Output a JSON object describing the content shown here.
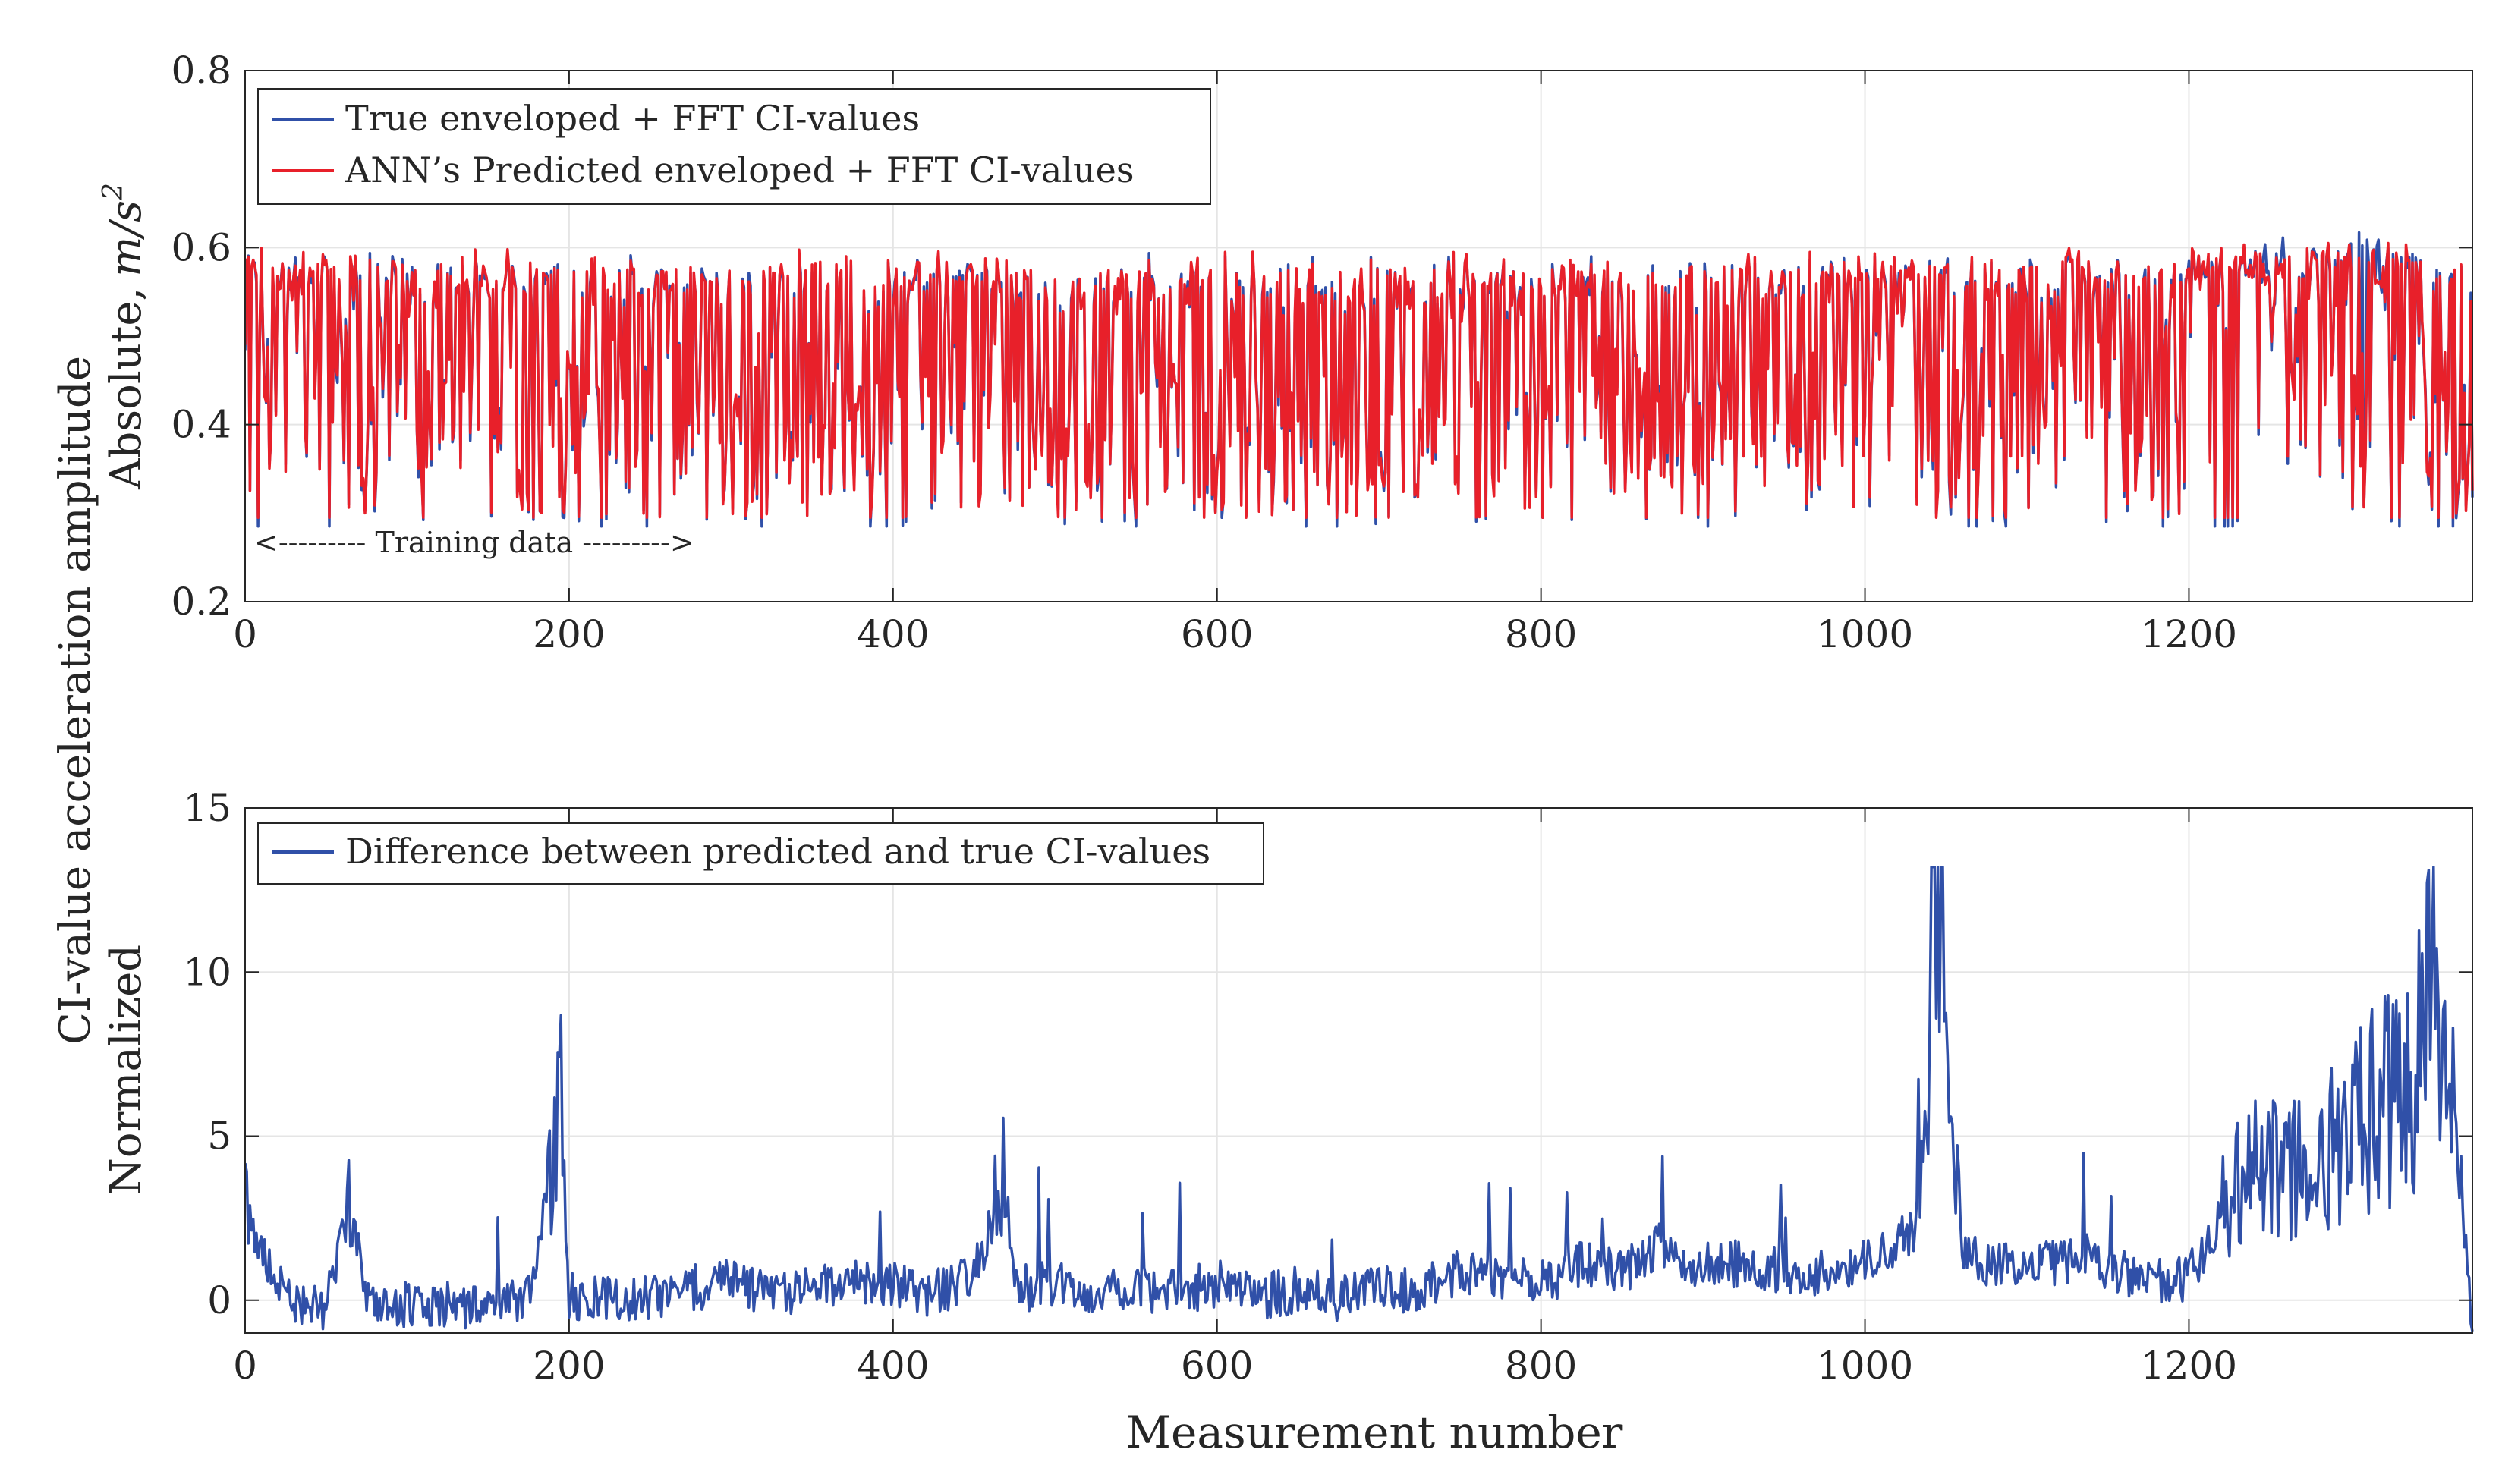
{
  "ylabel_outer": "CI-value acceleration amplitude",
  "chart_data": [
    {
      "type": "line",
      "name": "top",
      "ylabel": "Absolute, m/s²",
      "ylabel_text": "Absolute,",
      "ylabel_unit_main": "m/s",
      "ylabel_unit_exp": "2",
      "xlabel": "",
      "xlim": [
        0,
        1375
      ],
      "ylim": [
        0.2,
        0.8
      ],
      "xticks": [
        0,
        200,
        400,
        600,
        800,
        1000,
        1200
      ],
      "yticks": [
        0.2,
        0.4,
        0.6,
        0.8
      ],
      "xtick_labels": [
        "0",
        "200",
        "400",
        "600",
        "800",
        "1000",
        "1200"
      ],
      "ytick_labels": [
        "0.2",
        "0.4",
        "0.6",
        "0.8"
      ],
      "grid": true,
      "legend_position": "top-left",
      "annotation": "<--------- Training data --------->",
      "series": [
        {
          "name": "True enveloped + FFT CI-values",
          "color": "#3050a8",
          "x": [
            0,
            25,
            50,
            75,
            100,
            125,
            150,
            175,
            200,
            225,
            250,
            275,
            300,
            325,
            350,
            375,
            400,
            425,
            450,
            475,
            500,
            525,
            550,
            575,
            600,
            625,
            650,
            675,
            700,
            725,
            750,
            775,
            800,
            825,
            850,
            875,
            900,
            925,
            950,
            975,
            1000,
            1025,
            1050,
            1075,
            1100,
            1125,
            1150,
            1175,
            1200,
            1225,
            1250,
            1275,
            1300,
            1325,
            1350,
            1375
          ],
          "values": [
            0.57,
            0.52,
            0.49,
            0.58,
            0.47,
            0.5,
            0.46,
            0.52,
            0.55,
            0.49,
            0.48,
            0.52,
            0.47,
            0.53,
            0.5,
            0.45,
            0.48,
            0.5,
            0.53,
            0.5,
            0.45,
            0.42,
            0.47,
            0.49,
            0.44,
            0.46,
            0.43,
            0.46,
            0.45,
            0.44,
            0.47,
            0.48,
            0.44,
            0.5,
            0.49,
            0.46,
            0.45,
            0.47,
            0.49,
            0.5,
            0.52,
            0.55,
            0.51,
            0.5,
            0.47,
            0.55,
            0.53,
            0.5,
            0.56,
            0.6,
            0.61,
            0.6,
            0.64,
            0.62,
            0.6,
            0.42
          ]
        },
        {
          "name": "ANN’s Predicted enveloped + FFT CI-values",
          "color": "#e8202a",
          "x": [
            0,
            25,
            50,
            75,
            100,
            125,
            150,
            175,
            200,
            225,
            250,
            275,
            300,
            325,
            350,
            375,
            400,
            425,
            450,
            475,
            500,
            525,
            550,
            575,
            600,
            625,
            650,
            675,
            700,
            725,
            750,
            775,
            800,
            825,
            850,
            875,
            900,
            925,
            950,
            975,
            1000,
            1025,
            1050,
            1075,
            1100,
            1125,
            1150,
            1175,
            1200,
            1225,
            1250,
            1275,
            1300,
            1325,
            1350,
            1375
          ],
          "values": [
            0.57,
            0.51,
            0.49,
            0.57,
            0.47,
            0.5,
            0.46,
            0.52,
            0.55,
            0.49,
            0.48,
            0.52,
            0.47,
            0.53,
            0.5,
            0.45,
            0.48,
            0.5,
            0.53,
            0.5,
            0.45,
            0.42,
            0.47,
            0.49,
            0.44,
            0.46,
            0.43,
            0.46,
            0.45,
            0.44,
            0.47,
            0.48,
            0.44,
            0.5,
            0.49,
            0.46,
            0.45,
            0.47,
            0.49,
            0.5,
            0.5,
            0.52,
            0.49,
            0.49,
            0.47,
            0.52,
            0.51,
            0.49,
            0.52,
            0.53,
            0.52,
            0.5,
            0.52,
            0.5,
            0.5,
            0.38
          ]
        }
      ]
    },
    {
      "type": "line",
      "name": "bottom",
      "ylabel": "Normalized",
      "xlabel": "Measurement number",
      "xlim": [
        0,
        1375
      ],
      "ylim": [
        -1,
        15
      ],
      "xticks": [
        0,
        200,
        400,
        600,
        800,
        1000,
        1200
      ],
      "yticks": [
        0,
        5,
        10,
        15
      ],
      "xtick_labels": [
        "0",
        "200",
        "400",
        "600",
        "800",
        "1000",
        "1200"
      ],
      "ytick_labels": [
        "0",
        "5",
        "10",
        "15"
      ],
      "grid": true,
      "legend_position": "top-left",
      "series": [
        {
          "name": "Difference between predicted and true CI-values",
          "color": "#3050a8",
          "x": [
            0,
            25,
            50,
            65,
            75,
            100,
            125,
            150,
            175,
            195,
            200,
            225,
            250,
            275,
            300,
            325,
            350,
            375,
            400,
            425,
            450,
            470,
            475,
            500,
            525,
            550,
            575,
            600,
            625,
            650,
            675,
            700,
            725,
            750,
            775,
            800,
            825,
            850,
            875,
            900,
            925,
            950,
            975,
            1000,
            1030,
            1040,
            1047,
            1060,
            1075,
            1100,
            1125,
            1140,
            1150,
            1175,
            1200,
            1225,
            1250,
            1275,
            1300,
            1320,
            1340,
            1350,
            1360,
            1375
          ],
          "values": [
            3.3,
            0.5,
            0.2,
            3.5,
            0.6,
            0.3,
            0.4,
            0.2,
            0.5,
            6.0,
            0.6,
            0.6,
            0.5,
            0.8,
            1.2,
            0.6,
            0.8,
            1.0,
            0.9,
            0.7,
            1.2,
            4.1,
            0.8,
            1.0,
            0.6,
            0.9,
            0.7,
            1.0,
            0.6,
            0.8,
            0.5,
            0.9,
            0.7,
            1.4,
            1.2,
            1.0,
            1.6,
            1.3,
            2.2,
            1.5,
            1.6,
            1.4,
            1.3,
            1.8,
            2.5,
            9.6,
            10.9,
            2.0,
            1.6,
            1.6,
            1.6,
            1.8,
            1.5,
            1.0,
            1.2,
            3.5,
            4.5,
            4.0,
            5.5,
            6.0,
            7.0,
            9.5,
            7.0,
            0.0
          ]
        }
      ]
    }
  ]
}
